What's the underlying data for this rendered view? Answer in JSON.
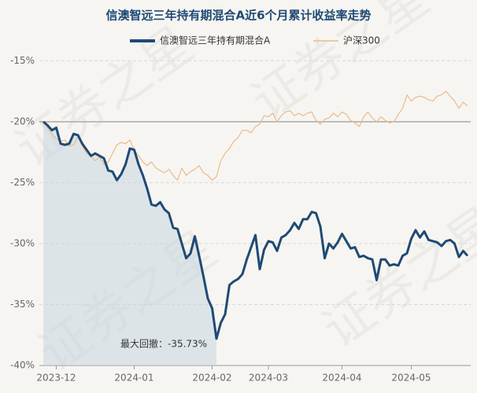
{
  "chart_data": {
    "type": "line",
    "title": "信澳智远三年持有期混合A近6个月累计收益率走势",
    "watermark": "证券之星",
    "annotation": "最大回撤：-35.73%",
    "categories": [
      null,
      null,
      null,
      "2023-12",
      null,
      null,
      null,
      null,
      null,
      null,
      null,
      null,
      null,
      null,
      null,
      null,
      null,
      null,
      null,
      null,
      null,
      "2024-01",
      null,
      null,
      null,
      null,
      null,
      null,
      null,
      null,
      null,
      null,
      null,
      null,
      null,
      null,
      null,
      null,
      null,
      "2024-02",
      null,
      null,
      null,
      null,
      null,
      null,
      null,
      null,
      null,
      null,
      null,
      null,
      "2024-03",
      null,
      null,
      null,
      null,
      null,
      null,
      null,
      null,
      null,
      null,
      null,
      null,
      null,
      null,
      null,
      null,
      "2024-04",
      null,
      null,
      null,
      null,
      null,
      null,
      null,
      null,
      null,
      null,
      null,
      null,
      null,
      null,
      null,
      "2024-05",
      null,
      null,
      null,
      null,
      null,
      null,
      null,
      null,
      null,
      null,
      null,
      null,
      null
    ],
    "series": [
      {
        "name": "信澳智远三年持有期混合A",
        "color": "#1f4a75",
        "values": [
          -20,
          -20.3,
          -20.7,
          -20.5,
          -21.8,
          -21.9,
          -21.8,
          -21,
          -21.1,
          -21.8,
          -22.3,
          -22.8,
          -22.6,
          -22.8,
          -23,
          -24,
          -24.1,
          -24.8,
          -24.3,
          -23.5,
          -22.2,
          -22.3,
          -23.5,
          -24.4,
          -25.5,
          -26.8,
          -26.9,
          -26.6,
          -27.2,
          -27.5,
          -28.7,
          -28.8,
          -30,
          -31.2,
          -30.8,
          -29.4,
          -31,
          -32.7,
          -34.5,
          -35.3,
          -37.8,
          -36.5,
          -35.8,
          -33.4,
          -33.1,
          -32.9,
          -32.5,
          -31.3,
          -30.3,
          -29.3,
          -32.1,
          -30.5,
          -29.8,
          -29.9,
          -30.6,
          -29.5,
          -29.3,
          -28.9,
          -28.3,
          -28.8,
          -28,
          -28,
          -27.4,
          -27.5,
          -28.6,
          -31.2,
          -30,
          -30.4,
          -29.9,
          -29.2,
          -29.8,
          -30.4,
          -30.3,
          -31.1,
          -31,
          -31.2,
          -31.3,
          -33,
          -31.3,
          -31.3,
          -31.8,
          -31.7,
          -31.8,
          -31,
          -30.8,
          -29.6,
          -28.9,
          -29.5,
          -29,
          -29.7,
          -29.8,
          -29.9,
          -30.2,
          -29.8,
          -29.7,
          -30,
          -31.1,
          -30.6,
          -31
        ]
      },
      {
        "name": "沪深300",
        "color": "#e9bb8c",
        "values": [
          -20,
          -20.5,
          -21,
          -21.4,
          -21.6,
          -21.5,
          -22,
          -21.9,
          -21.2,
          -22,
          -22.6,
          -22.8,
          -23.2,
          -22.9,
          -23.5,
          -23.3,
          -22.6,
          -21.9,
          -21.7,
          -21.8,
          -21.5,
          -22.3,
          -22.8,
          -23.3,
          -23.6,
          -23.3,
          -23.8,
          -24,
          -24.2,
          -23.9,
          -24.4,
          -24.8,
          -23.8,
          -24.4,
          -24.1,
          -23.9,
          -23.6,
          -24.2,
          -24.4,
          -24.8,
          -24.5,
          -23.2,
          -22.6,
          -22.2,
          -21.6,
          -21.3,
          -20.7,
          -20.7,
          -20.9,
          -20.4,
          -20.2,
          -19.5,
          -19.6,
          -19.3,
          -20,
          -19.5,
          -19.2,
          -19.1,
          -19.5,
          -19.3,
          -19.5,
          -19.3,
          -19.2,
          -19.9,
          -20.2,
          -19.8,
          -19.7,
          -19.3,
          -19.6,
          -19.2,
          -19.4,
          -19.9,
          -20.1,
          -20.4,
          -19.6,
          -19.2,
          -19.7,
          -20,
          -19.6,
          -19.9,
          -20.1,
          -20,
          -19.4,
          -18.9,
          -17.8,
          -18.3,
          -18,
          -17.9,
          -18,
          -18.2,
          -18.3,
          -17.9,
          -17.8,
          -17.5,
          -17.9,
          -18.3,
          -18.9,
          -18.4,
          -18.7
        ]
      }
    ],
    "ylim": [
      -40,
      -14.4
    ],
    "yticks": [
      {
        "value": -15,
        "label": "-15%"
      },
      {
        "value": -20,
        "label": "-20%"
      },
      {
        "value": -25,
        "label": "-25%"
      },
      {
        "value": -30,
        "label": "-30%"
      },
      {
        "value": -35,
        "label": "-35%"
      },
      {
        "value": -40,
        "label": "-40%"
      }
    ],
    "grid": true
  }
}
